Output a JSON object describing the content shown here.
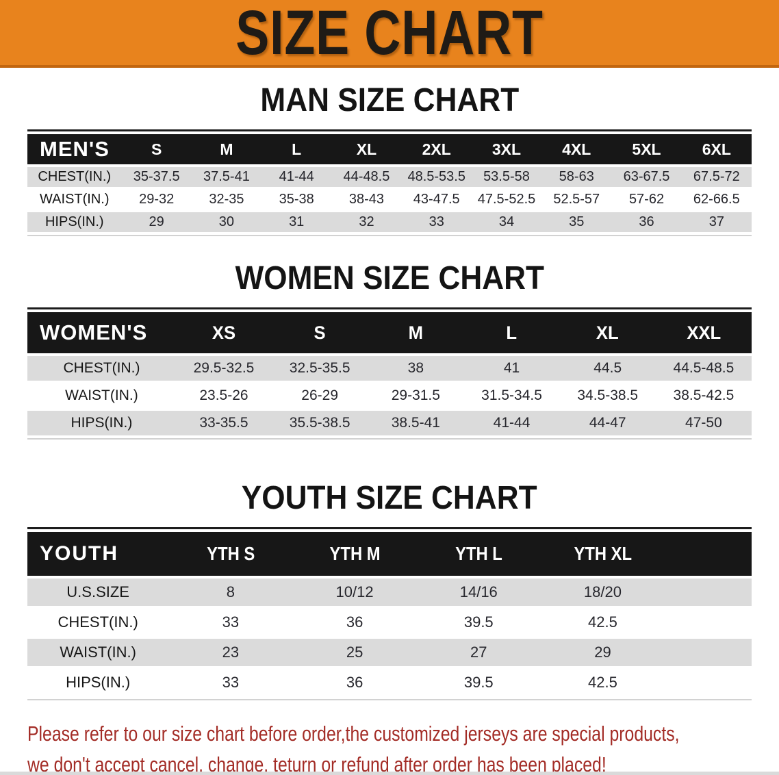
{
  "colors": {
    "banner_bg": "#E8831D",
    "banner_edge": "#C2660F",
    "header_bar": "#171717",
    "row_gray": "#DBDBDB",
    "note_red": "#A32C26"
  },
  "banner": {
    "title": "SIZE CHART"
  },
  "sections": {
    "man": {
      "title": "MAN SIZE CHART"
    },
    "women": {
      "title": "WOMEN SIZE CHART"
    },
    "youth": {
      "title": "YOUTH SIZE CHART"
    }
  },
  "tables": {
    "men": {
      "header_label": "MEN'S",
      "sizes": [
        "S",
        "M",
        "L",
        "XL",
        "2XL",
        "3XL",
        "4XL",
        "5XL",
        "6XL"
      ],
      "rows": [
        {
          "label": "CHEST(IN.)",
          "values": [
            "35-37.5",
            "37.5-41",
            "41-44",
            "44-48.5",
            "48.5-53.5",
            "53.5-58",
            "58-63",
            "63-67.5",
            "67.5-72"
          ]
        },
        {
          "label": "WAIST(IN.)",
          "values": [
            "29-32",
            "32-35",
            "35-38",
            "38-43",
            "43-47.5",
            "47.5-52.5",
            "52.5-57",
            "57-62",
            "62-66.5"
          ]
        },
        {
          "label": "HIPS(IN.)",
          "values": [
            "29",
            "30",
            "31",
            "32",
            "33",
            "34",
            "35",
            "36",
            "37"
          ]
        }
      ]
    },
    "women": {
      "header_label": "WOMEN'S",
      "sizes": [
        "XS",
        "S",
        "M",
        "L",
        "XL",
        "XXL"
      ],
      "rows": [
        {
          "label": "CHEST(IN.)",
          "values": [
            "29.5-32.5",
            "32.5-35.5",
            "38",
            "41",
            "44.5",
            "44.5-48.5"
          ]
        },
        {
          "label": "WAIST(IN.)",
          "values": [
            "23.5-26",
            "26-29",
            "29-31.5",
            "31.5-34.5",
            "34.5-38.5",
            "38.5-42.5"
          ]
        },
        {
          "label": "HIPS(IN.)",
          "values": [
            "33-35.5",
            "35.5-38.5",
            "38.5-41",
            "41-44",
            "44-47",
            "47-50"
          ]
        }
      ]
    },
    "youth": {
      "header_label": "YOUTH",
      "sizes": [
        "YTH S",
        "YTH M",
        "YTH L",
        "YTH XL"
      ],
      "rows": [
        {
          "label": "U.S.SIZE",
          "values": [
            "8",
            "10/12",
            "14/16",
            "18/20"
          ]
        },
        {
          "label": "CHEST(IN.)",
          "values": [
            "33",
            "36",
            "39.5",
            "42.5"
          ]
        },
        {
          "label": "WAIST(IN.)",
          "values": [
            "23",
            "25",
            "27",
            "29"
          ]
        },
        {
          "label": "HIPS(IN.)",
          "values": [
            "33",
            "36",
            "39.5",
            "42.5"
          ]
        }
      ]
    }
  },
  "note": {
    "line1": "Please refer to our size chart before order,the customized jerseys are special products,",
    "line2": "we don't accept cancel, change, teturn or refund after order has been placed!"
  }
}
